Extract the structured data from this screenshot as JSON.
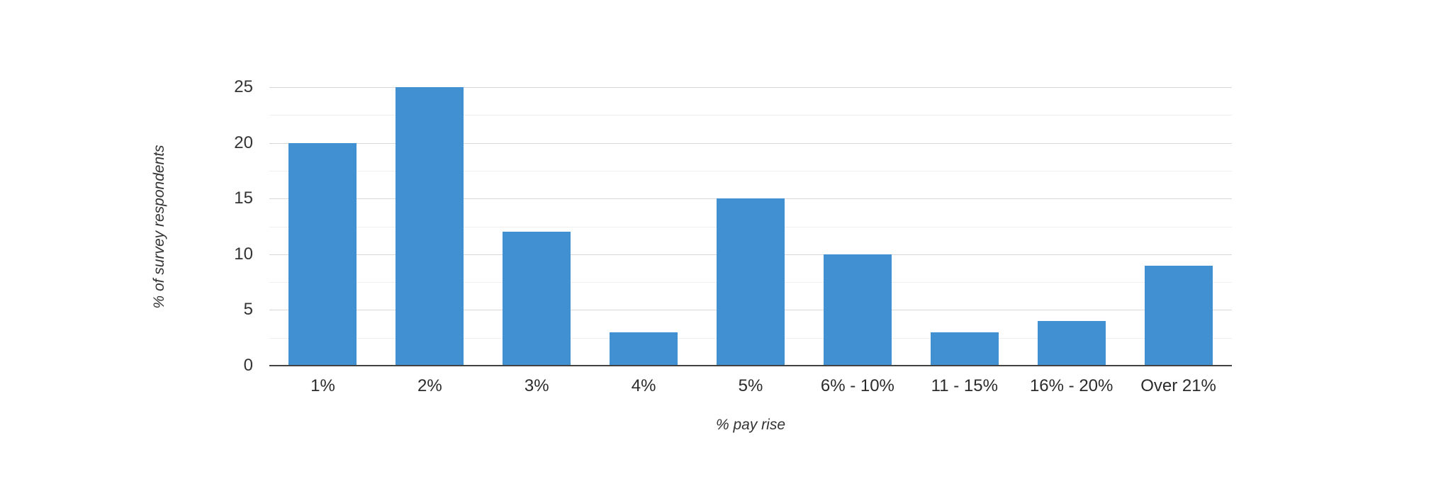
{
  "chart_data": {
    "type": "bar",
    "title": "",
    "categories": [
      "1%",
      "2%",
      "3%",
      "4%",
      "5%",
      "6% - 10%",
      "11 - 15%",
      "16% - 20%",
      "Over 21%"
    ],
    "values": [
      20,
      25,
      12,
      3,
      15,
      10,
      3,
      4,
      9
    ],
    "xlabel": "% pay rise",
    "ylabel": "% of survey respondents",
    "ylim": [
      0,
      25
    ],
    "y_major_ticks": [
      0,
      5,
      10,
      15,
      20,
      25
    ],
    "y_minor_step": 2.5,
    "grid": true,
    "legend": "none",
    "colors": {
      "bar": "#4190d2",
      "major_gridline": "#d8d8d8",
      "minor_gridline": "#efefef",
      "axis_line": "#424242",
      "text": "#333333"
    }
  }
}
